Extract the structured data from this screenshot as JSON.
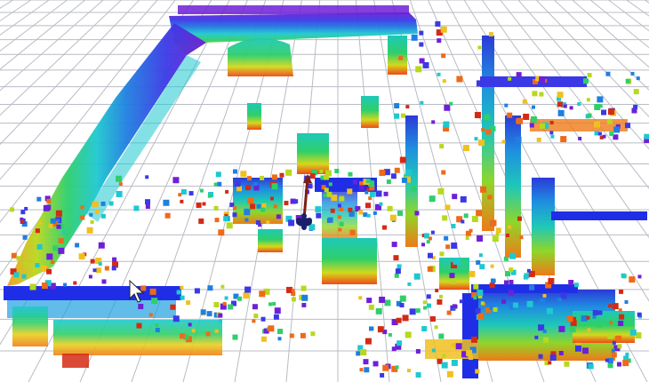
{
  "viewer": {
    "background_color": "#ffffff",
    "grid_color": "#b9bcc4",
    "point_palette": [
      "#6f1fd6",
      "#3b39e6",
      "#1f7fe0",
      "#1ec8d0",
      "#2ecf6a",
      "#b7d81e",
      "#f0c020",
      "#ef6a18",
      "#d42a14"
    ],
    "color_mapping": "height",
    "robot_marker_color": "#1a1f6b",
    "robot_heading_color": "#7a1f14"
  }
}
